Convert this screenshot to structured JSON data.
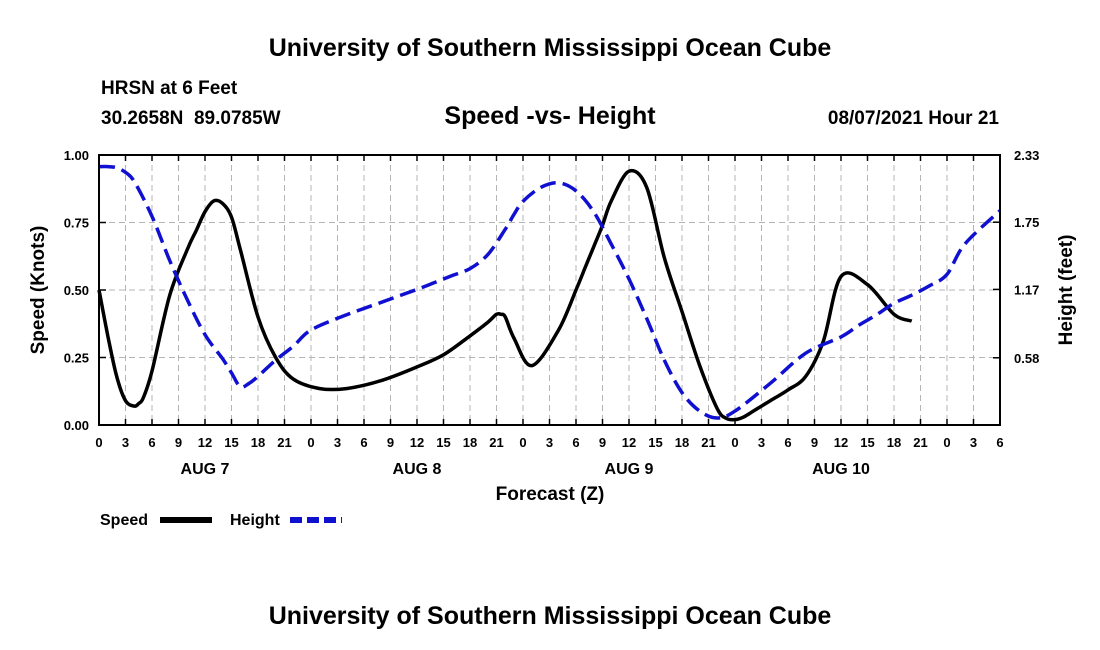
{
  "header": {
    "title": "University of Southern Mississippi Ocean Cube",
    "station": "HRSN at 6 Feet",
    "coords": "30.2658N  89.0785W",
    "subtitle": "Speed -vs- Height",
    "timestamp": "08/07/2021 Hour 21"
  },
  "footer": {
    "title": "University of Southern Mississippi Ocean Cube"
  },
  "chart_data": {
    "type": "line",
    "title": "Speed -vs- Height",
    "xlabel": "Forecast (Z)",
    "ylabel": "Speed (Knots)",
    "y2label": "Height (feet)",
    "grid": true,
    "x_unit": "forecast hours from AUG 7 00Z",
    "xlim": [
      -12,
      90
    ],
    "ylim": [
      0,
      1
    ],
    "y2lim": [
      0,
      2.33
    ],
    "x_ticks": [
      -12,
      -9,
      -6,
      -3,
      0,
      3,
      6,
      9,
      12,
      15,
      18,
      21,
      24,
      27,
      30,
      33,
      36,
      39,
      42,
      45,
      48,
      51,
      54,
      57,
      60,
      63,
      66,
      69,
      72,
      75,
      78,
      81,
      84,
      87,
      90
    ],
    "x_tick_labels": [
      "0",
      "3",
      "6",
      "9",
      "12",
      "15",
      "18",
      "21",
      "0",
      "3",
      "6",
      "9",
      "12",
      "15",
      "18",
      "21",
      "0",
      "3",
      "6",
      "9",
      "12",
      "15",
      "18",
      "21",
      "0",
      "3",
      "6",
      "9",
      "12",
      "15",
      "18",
      "21",
      "0",
      "3",
      "6"
    ],
    "date_labels": [
      {
        "x": 0,
        "label": "AUG 7"
      },
      {
        "x": 24,
        "label": "AUG 8"
      },
      {
        "x": 48,
        "label": "AUG 9"
      },
      {
        "x": 72,
        "label": "AUG 10"
      }
    ],
    "y_ticks": [
      0,
      0.25,
      0.5,
      0.75,
      1.0
    ],
    "y_tick_labels": [
      "0.00",
      "0.25",
      "0.50",
      "0.75",
      "1.00"
    ],
    "y2_ticks": [
      0.58,
      1.17,
      1.75,
      2.33
    ],
    "y2_tick_labels": [
      "0.58",
      "1.17",
      "1.75",
      "2.33"
    ],
    "series": [
      {
        "name": "Speed",
        "axis": "left",
        "color": "#000000",
        "style": "solid",
        "x": [
          -12,
          -11,
          -10,
          -9,
          -8,
          -7.5,
          -7,
          -6,
          -4,
          -2,
          -1,
          0,
          1,
          2,
          3,
          4,
          6,
          8,
          10,
          13,
          16,
          20,
          24,
          27,
          30,
          32,
          33,
          33.5,
          34,
          35,
          37,
          40,
          42,
          43,
          44,
          45,
          46,
          48,
          50,
          52,
          54,
          56,
          58,
          59,
          60,
          61,
          62,
          63,
          64,
          66,
          68,
          70,
          72,
          75,
          78,
          80
        ],
        "y": [
          0.5,
          0.33,
          0.18,
          0.09,
          0.07,
          0.08,
          0.1,
          0.2,
          0.48,
          0.65,
          0.72,
          0.79,
          0.83,
          0.82,
          0.77,
          0.65,
          0.4,
          0.25,
          0.17,
          0.135,
          0.135,
          0.165,
          0.215,
          0.26,
          0.33,
          0.38,
          0.41,
          0.41,
          0.4,
          0.32,
          0.22,
          0.35,
          0.5,
          0.58,
          0.66,
          0.74,
          0.83,
          0.94,
          0.88,
          0.62,
          0.42,
          0.22,
          0.06,
          0.025,
          0.02,
          0.03,
          0.05,
          0.07,
          0.09,
          0.13,
          0.18,
          0.31,
          0.55,
          0.52,
          0.41,
          0.385
        ]
      },
      {
        "name": "Height",
        "axis": "right",
        "color": "#1010d0",
        "style": "dashed",
        "x": [
          -12,
          -11,
          -10,
          -9,
          -8,
          -6,
          -4,
          -2,
          0,
          2,
          3,
          4,
          5,
          6,
          8,
          10,
          12,
          16,
          20,
          24,
          26,
          28,
          30,
          32,
          34,
          35,
          36,
          38,
          40,
          42,
          44,
          46,
          48,
          50,
          52,
          54,
          56,
          58,
          60,
          64,
          68,
          72,
          74,
          76,
          78,
          80,
          82,
          84,
          86,
          90
        ],
        "y": [
          2.23,
          2.23,
          2.22,
          2.18,
          2.1,
          1.8,
          1.42,
          1.08,
          0.78,
          0.57,
          0.45,
          0.33,
          0.36,
          0.42,
          0.56,
          0.68,
          0.82,
          0.95,
          1.06,
          1.17,
          1.23,
          1.29,
          1.35,
          1.47,
          1.69,
          1.82,
          1.93,
          2.05,
          2.09,
          2.02,
          1.84,
          1.56,
          1.26,
          0.92,
          0.56,
          0.28,
          0.12,
          0.06,
          0.12,
          0.36,
          0.62,
          0.76,
          0.86,
          0.95,
          1.05,
          1.12,
          1.2,
          1.3,
          1.56,
          1.85
        ]
      }
    ],
    "legend": [
      {
        "label": "Speed",
        "color": "#000000",
        "style": "solid"
      },
      {
        "label": "Height",
        "color": "#1010d0",
        "style": "dashed"
      }
    ],
    "legend_position": "bottom-left"
  }
}
